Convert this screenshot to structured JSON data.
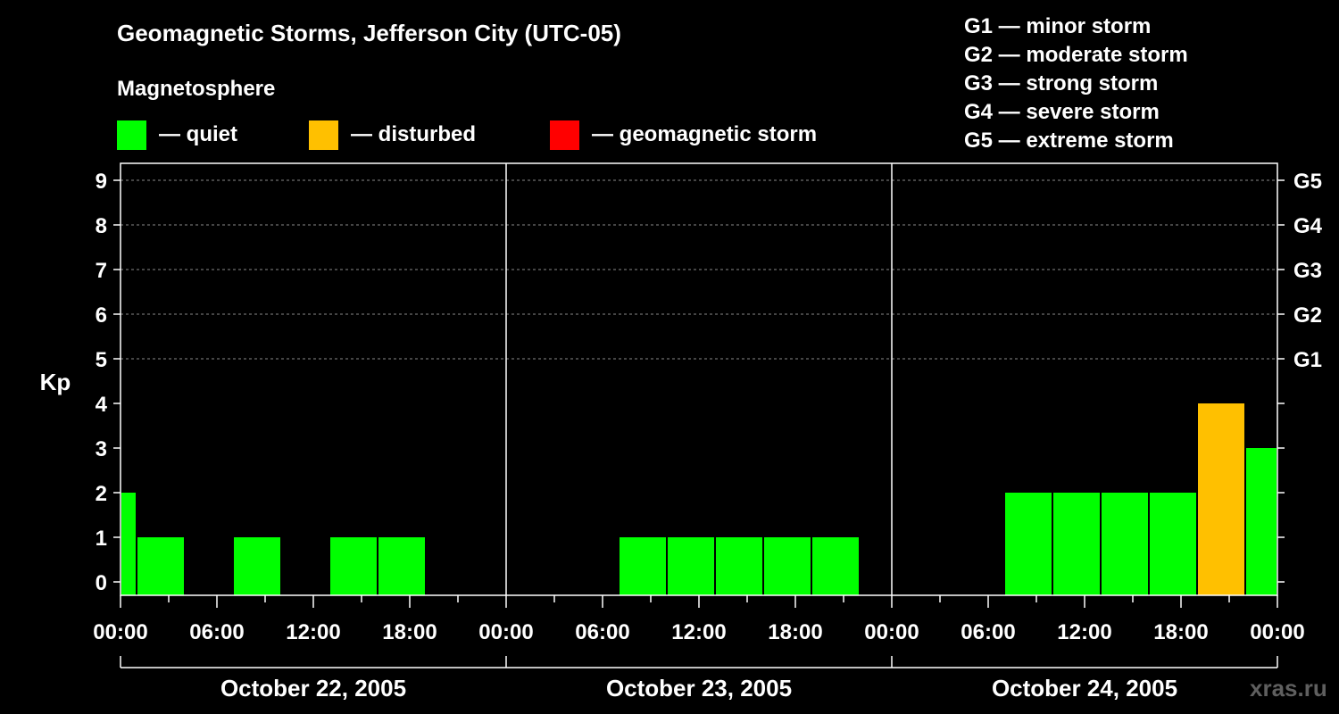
{
  "title": "Geomagnetic Storms, Jefferson City (UTC-05)",
  "subtitle": "Magnetosphere",
  "legend": [
    {
      "label": "— quiet",
      "color": "#00ff00"
    },
    {
      "label": "— disturbed",
      "color": "#ffc000"
    },
    {
      "label": "— geomagnetic storm",
      "color": "#ff0000"
    }
  ],
  "g_scale": [
    "G1 — minor storm",
    "G2 — moderate storm",
    "G3 — strong storm",
    "G4 — severe storm",
    "G5 — extreme storm"
  ],
  "watermark": "xras.ru",
  "chart_data": {
    "type": "bar",
    "ylabel": "Kp",
    "ylim": [
      0,
      9
    ],
    "y_ticks": [
      0,
      1,
      2,
      3,
      4,
      5,
      6,
      7,
      8,
      9
    ],
    "right_ticks": [
      {
        "kp": 5,
        "label": "G1"
      },
      {
        "kp": 6,
        "label": "G2"
      },
      {
        "kp": 7,
        "label": "G3"
      },
      {
        "kp": 8,
        "label": "G4"
      },
      {
        "kp": 9,
        "label": "G5"
      }
    ],
    "grid": "dashed horizontal lines at Kp 5-9",
    "x_tick_labels": [
      "00:00",
      "06:00",
      "12:00",
      "18:00",
      "00:00",
      "06:00",
      "12:00",
      "18:00",
      "00:00",
      "06:00",
      "12:00",
      "18:00",
      "00:00"
    ],
    "days": [
      "October 22, 2005",
      "October 23, 2005",
      "October 24, 2005"
    ],
    "bar_colors": {
      "quiet": "#00ff00",
      "disturbed": "#ffc000",
      "storm": "#ff0000"
    },
    "bars": [
      {
        "start": "Oct 22 00:00",
        "end": "Oct 22 01:00",
        "kp": 2,
        "status": "quiet"
      },
      {
        "start": "Oct 22 01:00",
        "end": "Oct 22 04:00",
        "kp": 1,
        "status": "quiet"
      },
      {
        "start": "Oct 22 04:00",
        "end": "Oct 22 07:00",
        "kp": 0,
        "status": "quiet"
      },
      {
        "start": "Oct 22 07:00",
        "end": "Oct 22 10:00",
        "kp": 1,
        "status": "quiet"
      },
      {
        "start": "Oct 22 10:00",
        "end": "Oct 22 13:00",
        "kp": 0,
        "status": "quiet"
      },
      {
        "start": "Oct 22 13:00",
        "end": "Oct 22 16:00",
        "kp": 1,
        "status": "quiet"
      },
      {
        "start": "Oct 22 16:00",
        "end": "Oct 22 19:00",
        "kp": 1,
        "status": "quiet"
      },
      {
        "start": "Oct 22 19:00",
        "end": "Oct 22 22:00",
        "kp": 0,
        "status": "quiet"
      },
      {
        "start": "Oct 22 22:00",
        "end": "Oct 23 01:00",
        "kp": 0,
        "status": "quiet"
      },
      {
        "start": "Oct 23 01:00",
        "end": "Oct 23 04:00",
        "kp": 0,
        "status": "quiet"
      },
      {
        "start": "Oct 23 04:00",
        "end": "Oct 23 07:00",
        "kp": 0,
        "status": "quiet"
      },
      {
        "start": "Oct 23 07:00",
        "end": "Oct 23 10:00",
        "kp": 1,
        "status": "quiet"
      },
      {
        "start": "Oct 23 10:00",
        "end": "Oct 23 13:00",
        "kp": 1,
        "status": "quiet"
      },
      {
        "start": "Oct 23 13:00",
        "end": "Oct 23 16:00",
        "kp": 1,
        "status": "quiet"
      },
      {
        "start": "Oct 23 16:00",
        "end": "Oct 23 19:00",
        "kp": 1,
        "status": "quiet"
      },
      {
        "start": "Oct 23 19:00",
        "end": "Oct 23 22:00",
        "kp": 1,
        "status": "quiet"
      },
      {
        "start": "Oct 23 22:00",
        "end": "Oct 24 01:00",
        "kp": 0,
        "status": "quiet"
      },
      {
        "start": "Oct 24 01:00",
        "end": "Oct 24 04:00",
        "kp": 0,
        "status": "quiet"
      },
      {
        "start": "Oct 24 04:00",
        "end": "Oct 24 07:00",
        "kp": 0,
        "status": "quiet"
      },
      {
        "start": "Oct 24 07:00",
        "end": "Oct 24 10:00",
        "kp": 2,
        "status": "quiet"
      },
      {
        "start": "Oct 24 10:00",
        "end": "Oct 24 13:00",
        "kp": 2,
        "status": "quiet"
      },
      {
        "start": "Oct 24 13:00",
        "end": "Oct 24 16:00",
        "kp": 2,
        "status": "quiet"
      },
      {
        "start": "Oct 24 16:00",
        "end": "Oct 24 19:00",
        "kp": 2,
        "status": "quiet"
      },
      {
        "start": "Oct 24 19:00",
        "end": "Oct 24 22:00",
        "kp": 4,
        "status": "disturbed"
      },
      {
        "start": "Oct 24 22:00",
        "end": "Oct 25 00:00",
        "kp": 3,
        "status": "quiet"
      }
    ]
  }
}
